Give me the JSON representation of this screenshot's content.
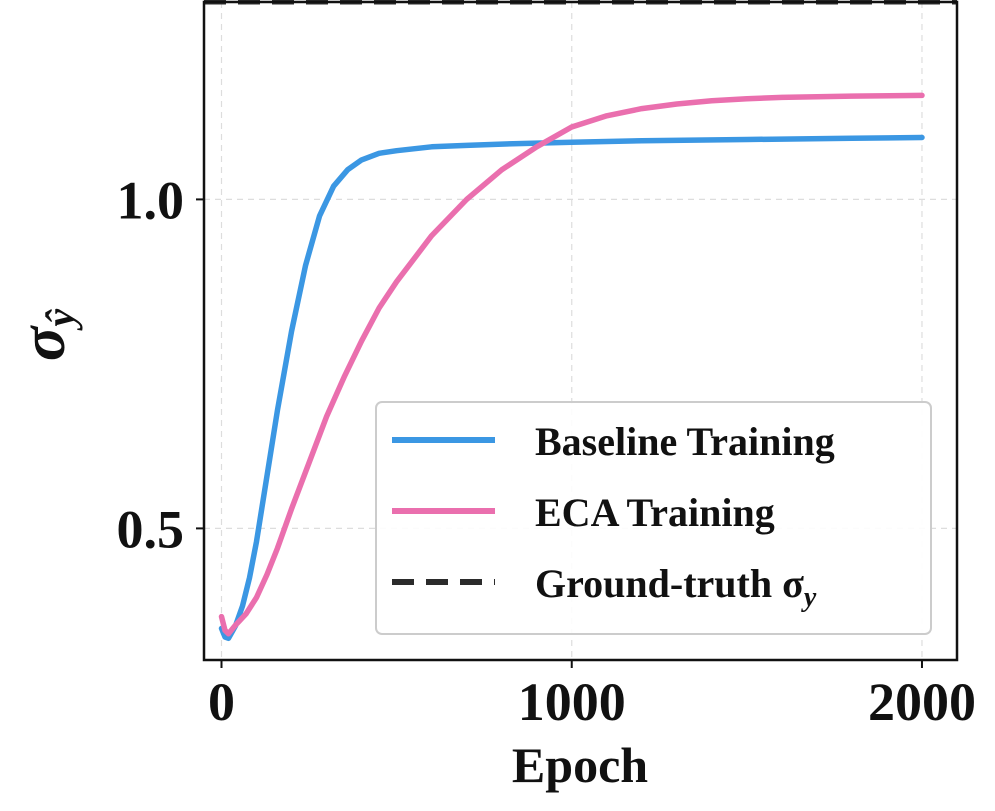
{
  "chart_data": {
    "type": "line",
    "title": "",
    "xlabel": "Epoch",
    "ylabel_symbol": "σ",
    "ylabel_subscript": "ŷ",
    "xlim": [
      -50,
      2100
    ],
    "ylim": [
      0.3,
      1.3
    ],
    "x_ticks": [
      0,
      1000,
      2000
    ],
    "x_tick_labels": [
      "0",
      "1000",
      "2000"
    ],
    "y_ticks": [
      0.5,
      1.0
    ],
    "y_tick_labels": [
      "0.5",
      "1.0"
    ],
    "grid": true,
    "legend_position": "lower-right",
    "series": [
      {
        "name": "Baseline Training",
        "color": "#3b97e3",
        "style": "solid",
        "x": [
          0,
          10,
          20,
          40,
          60,
          80,
          100,
          130,
          160,
          200,
          240,
          280,
          320,
          360,
          400,
          450,
          500,
          600,
          700,
          800,
          1000,
          1200,
          1500,
          1800,
          2000
        ],
        "y": [
          0.348,
          0.335,
          0.333,
          0.352,
          0.382,
          0.425,
          0.48,
          0.58,
          0.68,
          0.8,
          0.9,
          0.975,
          1.02,
          1.045,
          1.06,
          1.07,
          1.074,
          1.08,
          1.082,
          1.084,
          1.087,
          1.089,
          1.091,
          1.093,
          1.094
        ]
      },
      {
        "name": "ECA Training",
        "color": "#ea6fae",
        "style": "solid",
        "x": [
          0,
          10,
          20,
          40,
          70,
          100,
          130,
          160,
          200,
          250,
          300,
          350,
          400,
          450,
          500,
          600,
          700,
          800,
          900,
          1000,
          1100,
          1200,
          1300,
          1400,
          1500,
          1600,
          1700,
          1800,
          2000
        ],
        "y": [
          0.366,
          0.345,
          0.34,
          0.353,
          0.37,
          0.395,
          0.43,
          0.47,
          0.53,
          0.6,
          0.67,
          0.73,
          0.785,
          0.835,
          0.875,
          0.945,
          1.0,
          1.045,
          1.08,
          1.11,
          1.127,
          1.138,
          1.145,
          1.15,
          1.153,
          1.155,
          1.156,
          1.157,
          1.158
        ]
      },
      {
        "name": "Ground-truth σy",
        "label_symbol": "Ground-truth σ",
        "label_subscript": "y",
        "color": "#2b2b2b",
        "style": "dashed",
        "x": [
          -50,
          2100
        ],
        "y": [
          1.3,
          1.3
        ]
      }
    ]
  }
}
